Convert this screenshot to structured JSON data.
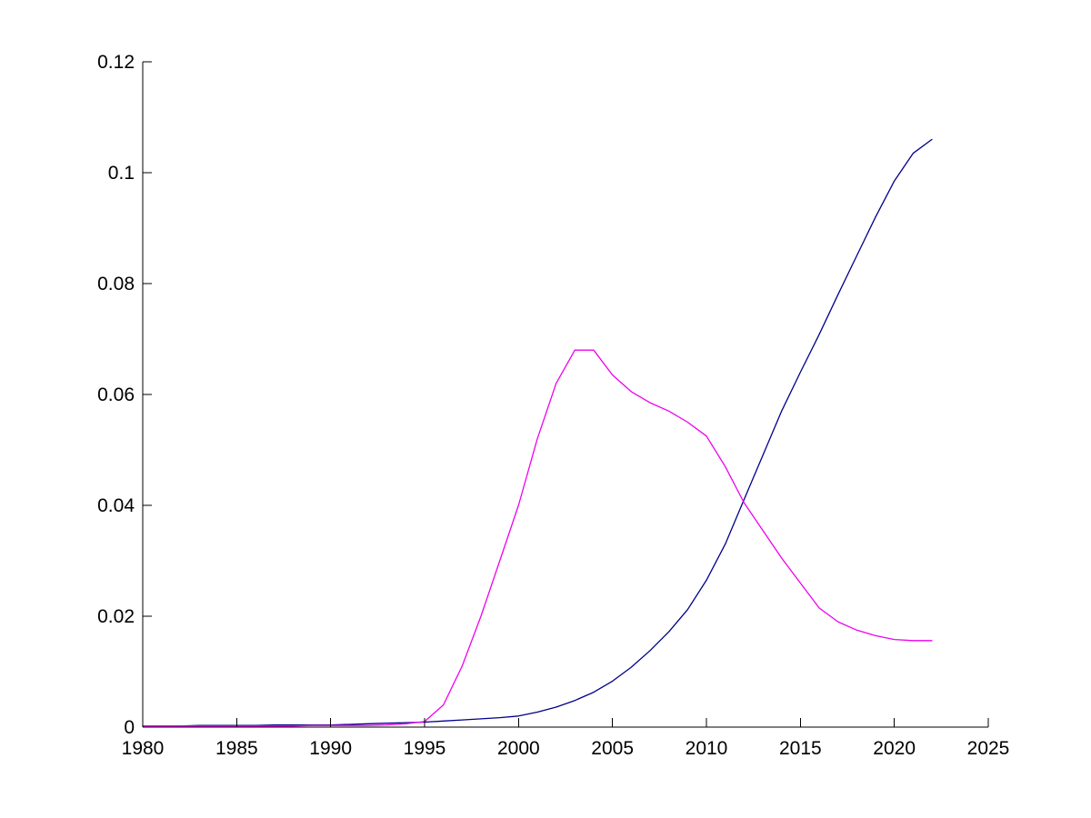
{
  "figure": {
    "background_color": "#ffffff",
    "title": "",
    "legend": null
  },
  "chart_data": {
    "type": "line",
    "title": "",
    "xlabel": "",
    "ylabel": "",
    "xlim": [
      1980,
      2025
    ],
    "ylim": [
      0,
      0.12
    ],
    "grid": false,
    "legend_position": "none",
    "axis_color": "#000000",
    "xticks": [
      1980,
      1985,
      1990,
      1995,
      2000,
      2005,
      2010,
      2015,
      2020,
      2025
    ],
    "xtick_labels": [
      "1980",
      "1985",
      "1990",
      "1995",
      "2000",
      "2005",
      "2010",
      "2015",
      "2020",
      "2025"
    ],
    "yticks": [
      0,
      0.02,
      0.04,
      0.06,
      0.08,
      0.1,
      0.12
    ],
    "ytick_labels": [
      "0",
      "0.02",
      "0.04",
      "0.06",
      "0.08",
      "0.1",
      "0.12"
    ],
    "x": [
      1980,
      1981,
      1982,
      1983,
      1984,
      1985,
      1986,
      1987,
      1988,
      1989,
      1990,
      1991,
      1992,
      1993,
      1994,
      1995,
      1996,
      1997,
      1998,
      1999,
      2000,
      2001,
      2002,
      2003,
      2004,
      2005,
      2006,
      2007,
      2008,
      2009,
      2010,
      2011,
      2012,
      2013,
      2014,
      2015,
      2016,
      2017,
      2018,
      2019,
      2020,
      2021,
      2022
    ],
    "series": [
      {
        "name": "magenta-series",
        "color": "#EE00EE",
        "values": [
          0.0002,
          0.0002,
          0.0002,
          0.0002,
          0.0002,
          0.0002,
          0.0002,
          0.0002,
          0.0002,
          0.0003,
          0.0003,
          0.0003,
          0.0003,
          0.0004,
          0.0006,
          0.001,
          0.004,
          0.011,
          0.02,
          0.03,
          0.04,
          0.052,
          0.062,
          0.068,
          0.068,
          0.0635,
          0.0605,
          0.0585,
          0.057,
          0.055,
          0.0525,
          0.047,
          0.0405,
          0.0355,
          0.0305,
          0.026,
          0.0215,
          0.019,
          0.0175,
          0.0165,
          0.0158,
          0.0156,
          0.0156
        ]
      },
      {
        "name": "dark-blue-series",
        "color": "#00008B",
        "values": [
          0.0002,
          0.0002,
          0.0002,
          0.0003,
          0.0003,
          0.0003,
          0.0003,
          0.0004,
          0.0004,
          0.0004,
          0.0004,
          0.0005,
          0.0006,
          0.0007,
          0.0008,
          0.0009,
          0.0011,
          0.0013,
          0.0015,
          0.0017,
          0.002,
          0.0027,
          0.0036,
          0.0048,
          0.0063,
          0.0083,
          0.0108,
          0.0138,
          0.0172,
          0.0212,
          0.0265,
          0.033,
          0.041,
          0.049,
          0.057,
          0.064,
          0.0708,
          0.078,
          0.085,
          0.092,
          0.0985,
          0.1035,
          0.106
        ]
      }
    ]
  }
}
